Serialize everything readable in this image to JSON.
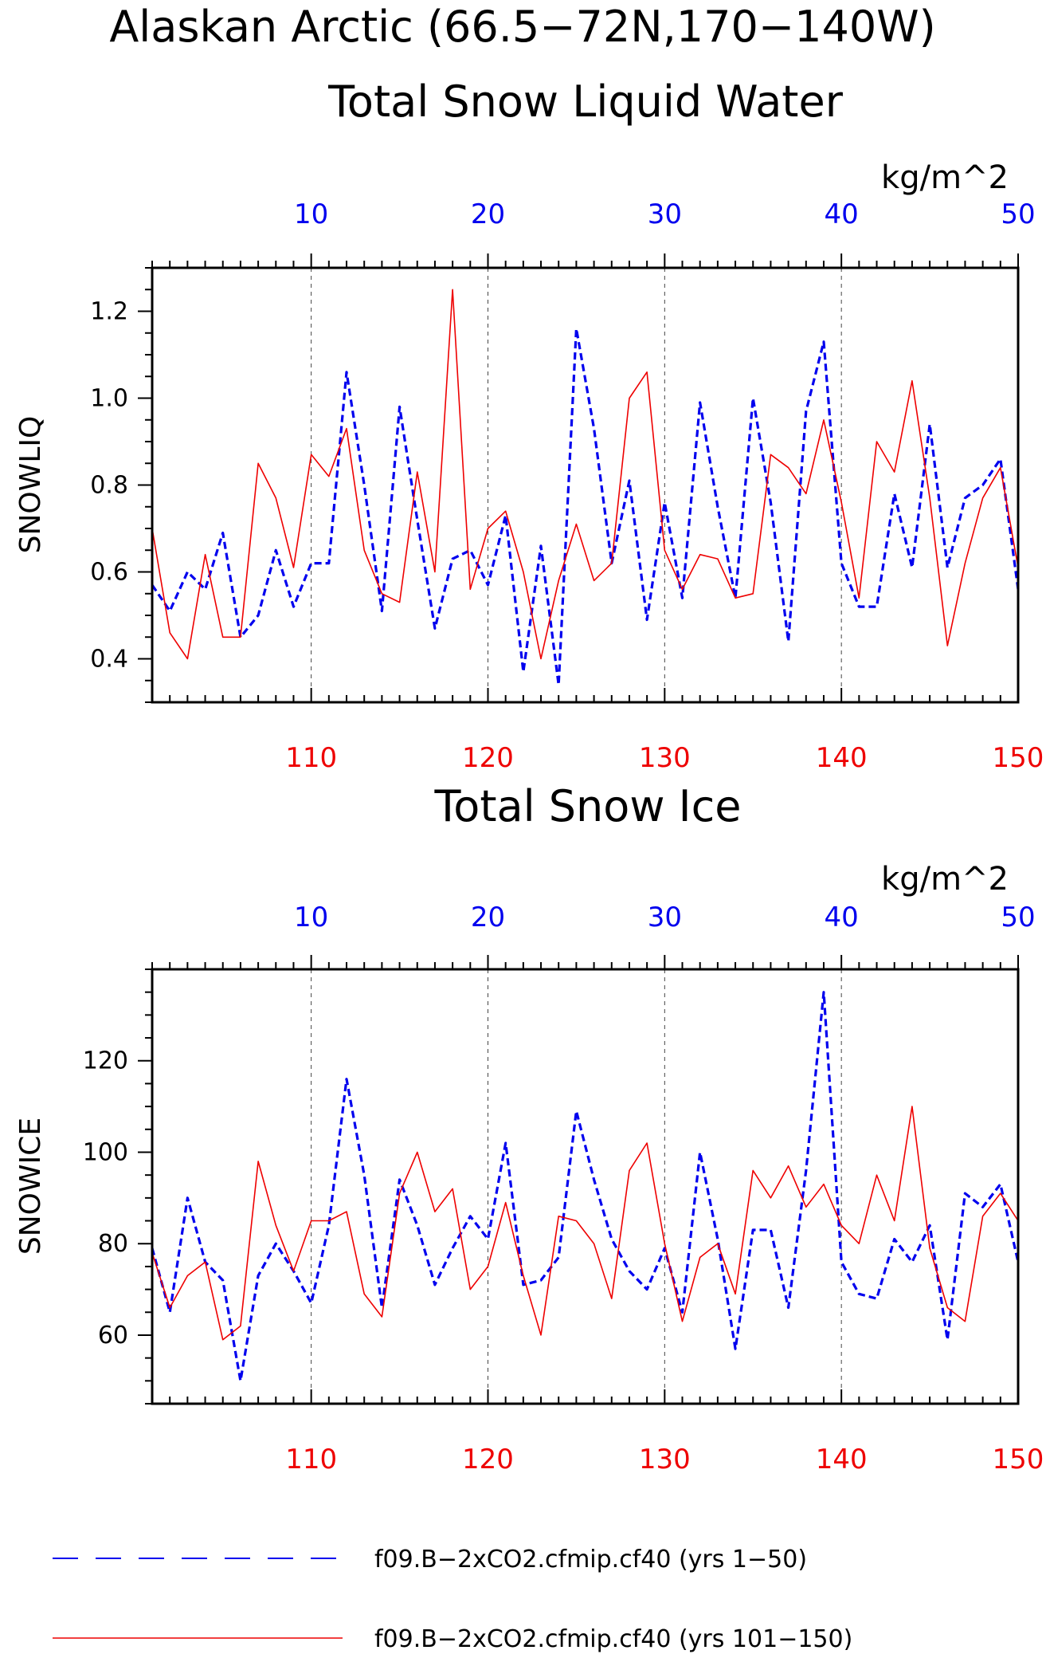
{
  "figure": {
    "title_line1": "Alaskan Arctic (66.5−72N,170−140W)",
    "title_line2": "Total Snow Liquid Water"
  },
  "colors": {
    "blue": "#0000ee",
    "red": "#ee0000",
    "black": "#000000"
  },
  "chart_data": [
    {
      "type": "line",
      "title": "Total Snow Liquid Water",
      "ylabel": "SNOWLIQ",
      "top_axis_unit": "kg/m^2",
      "xlim_bottom": [
        101,
        150
      ],
      "xlim_top": [
        1,
        50
      ],
      "ylim": [
        0.3,
        1.3
      ],
      "y_ticks": [
        0.4,
        0.6,
        0.8,
        1.0,
        1.2
      ],
      "y_tick_labels": [
        "0.4",
        "0.6",
        "0.8",
        "1.0",
        "1.2"
      ],
      "x_ticks_bottom": [
        110,
        120,
        130,
        140,
        150
      ],
      "x_ticks_top": [
        10,
        20,
        30,
        40,
        50
      ],
      "grid": "vertical dashed at major x ticks",
      "series": [
        {
          "name": "f09.B−2xCO2.cfmip.cf40 (yrs 1−50)",
          "x_axis": "top",
          "style": "dashed",
          "color": "blue",
          "x": [
            1,
            2,
            3,
            4,
            5,
            6,
            7,
            8,
            9,
            10,
            11,
            12,
            13,
            14,
            15,
            16,
            17,
            18,
            19,
            20,
            21,
            22,
            23,
            24,
            25,
            26,
            27,
            28,
            29,
            30,
            31,
            32,
            33,
            34,
            35,
            36,
            37,
            38,
            39,
            40,
            41,
            42,
            43,
            44,
            45,
            46,
            47,
            48,
            49,
            50
          ],
          "values": [
            0.57,
            0.51,
            0.6,
            0.56,
            0.69,
            0.45,
            0.5,
            0.65,
            0.52,
            0.62,
            0.62,
            1.06,
            0.8,
            0.51,
            0.98,
            0.72,
            0.47,
            0.63,
            0.65,
            0.57,
            0.73,
            0.37,
            0.66,
            0.34,
            1.16,
            0.93,
            0.62,
            0.81,
            0.49,
            0.76,
            0.54,
            0.99,
            0.75,
            0.54,
            1.0,
            0.76,
            0.44,
            0.97,
            1.13,
            0.62,
            0.52,
            0.52,
            0.78,
            0.61,
            0.94,
            0.61,
            0.77,
            0.8,
            0.86,
            0.56
          ]
        },
        {
          "name": "f09.B−2xCO2.cfmip.cf40 (yrs 101−150)",
          "x_axis": "bottom",
          "style": "solid",
          "color": "red",
          "x": [
            101,
            102,
            103,
            104,
            105,
            106,
            107,
            108,
            109,
            110,
            111,
            112,
            113,
            114,
            115,
            116,
            117,
            118,
            119,
            120,
            121,
            122,
            123,
            124,
            125,
            126,
            127,
            128,
            129,
            130,
            131,
            132,
            133,
            134,
            135,
            136,
            137,
            138,
            139,
            140,
            141,
            142,
            143,
            144,
            145,
            146,
            147,
            148,
            149,
            150
          ],
          "values": [
            0.7,
            0.46,
            0.4,
            0.64,
            0.45,
            0.45,
            0.85,
            0.77,
            0.61,
            0.87,
            0.82,
            0.93,
            0.65,
            0.55,
            0.53,
            0.83,
            0.6,
            1.25,
            0.56,
            0.7,
            0.74,
            0.6,
            0.4,
            0.58,
            0.71,
            0.58,
            0.62,
            1.0,
            1.06,
            0.65,
            0.56,
            0.64,
            0.63,
            0.54,
            0.55,
            0.87,
            0.84,
            0.78,
            0.95,
            0.76,
            0.54,
            0.9,
            0.83,
            1.04,
            0.77,
            0.43,
            0.62,
            0.77,
            0.84,
            0.61
          ]
        }
      ]
    },
    {
      "type": "line",
      "title": "Total Snow Ice",
      "ylabel": "SNOWICE",
      "top_axis_unit": "kg/m^2",
      "xlim_bottom": [
        101,
        150
      ],
      "xlim_top": [
        1,
        50
      ],
      "ylim": [
        45,
        140
      ],
      "y_ticks": [
        60,
        80,
        100,
        120
      ],
      "y_tick_labels": [
        "60",
        "80",
        "100",
        "120"
      ],
      "x_ticks_bottom": [
        110,
        120,
        130,
        140,
        150
      ],
      "x_ticks_top": [
        10,
        20,
        30,
        40,
        50
      ],
      "grid": "vertical dashed at major x ticks",
      "series": [
        {
          "name": "f09.B−2xCO2.cfmip.cf40 (yrs 1−50)",
          "x_axis": "top",
          "style": "dashed",
          "color": "blue",
          "x": [
            1,
            2,
            3,
            4,
            5,
            6,
            7,
            8,
            9,
            10,
            11,
            12,
            13,
            14,
            15,
            16,
            17,
            18,
            19,
            20,
            21,
            22,
            23,
            24,
            25,
            26,
            27,
            28,
            29,
            30,
            31,
            32,
            33,
            34,
            35,
            36,
            37,
            38,
            39,
            40,
            41,
            42,
            43,
            44,
            45,
            46,
            47,
            48,
            49,
            50
          ],
          "values": [
            79,
            65,
            90,
            76,
            72,
            50,
            73,
            80,
            74,
            67,
            84,
            116,
            95,
            66,
            94,
            84,
            71,
            79,
            86,
            81,
            102,
            71,
            72,
            77,
            109,
            94,
            81,
            74,
            70,
            79,
            65,
            100,
            81,
            57,
            83,
            83,
            66,
            96,
            135,
            76,
            69,
            68,
            81,
            76,
            84,
            59,
            91,
            88,
            93,
            76
          ]
        },
        {
          "name": "f09.B−2xCO2.cfmip.cf40 (yrs 101−150)",
          "x_axis": "bottom",
          "style": "solid",
          "color": "red",
          "x": [
            101,
            102,
            103,
            104,
            105,
            106,
            107,
            108,
            109,
            110,
            111,
            112,
            113,
            114,
            115,
            116,
            117,
            118,
            119,
            120,
            121,
            122,
            123,
            124,
            125,
            126,
            127,
            128,
            129,
            130,
            131,
            132,
            133,
            134,
            135,
            136,
            137,
            138,
            139,
            140,
            141,
            142,
            143,
            144,
            145,
            146,
            147,
            148,
            149,
            150
          ],
          "values": [
            78,
            66,
            73,
            76,
            59,
            62,
            98,
            84,
            74,
            85,
            85,
            87,
            69,
            64,
            91,
            100,
            87,
            92,
            70,
            75,
            89,
            73,
            60,
            86,
            85,
            80,
            68,
            96,
            102,
            80,
            63,
            77,
            80,
            69,
            96,
            90,
            97,
            88,
            93,
            84,
            80,
            95,
            85,
            110,
            79,
            66,
            63,
            86,
            91,
            85
          ]
        }
      ]
    }
  ],
  "legend": {
    "items": [
      {
        "label": "f09.B−2xCO2.cfmip.cf40 (yrs 1−50)",
        "color": "blue",
        "style": "dashed"
      },
      {
        "label": "f09.B−2xCO2.cfmip.cf40 (yrs 101−150)",
        "color": "red",
        "style": "solid"
      }
    ]
  }
}
